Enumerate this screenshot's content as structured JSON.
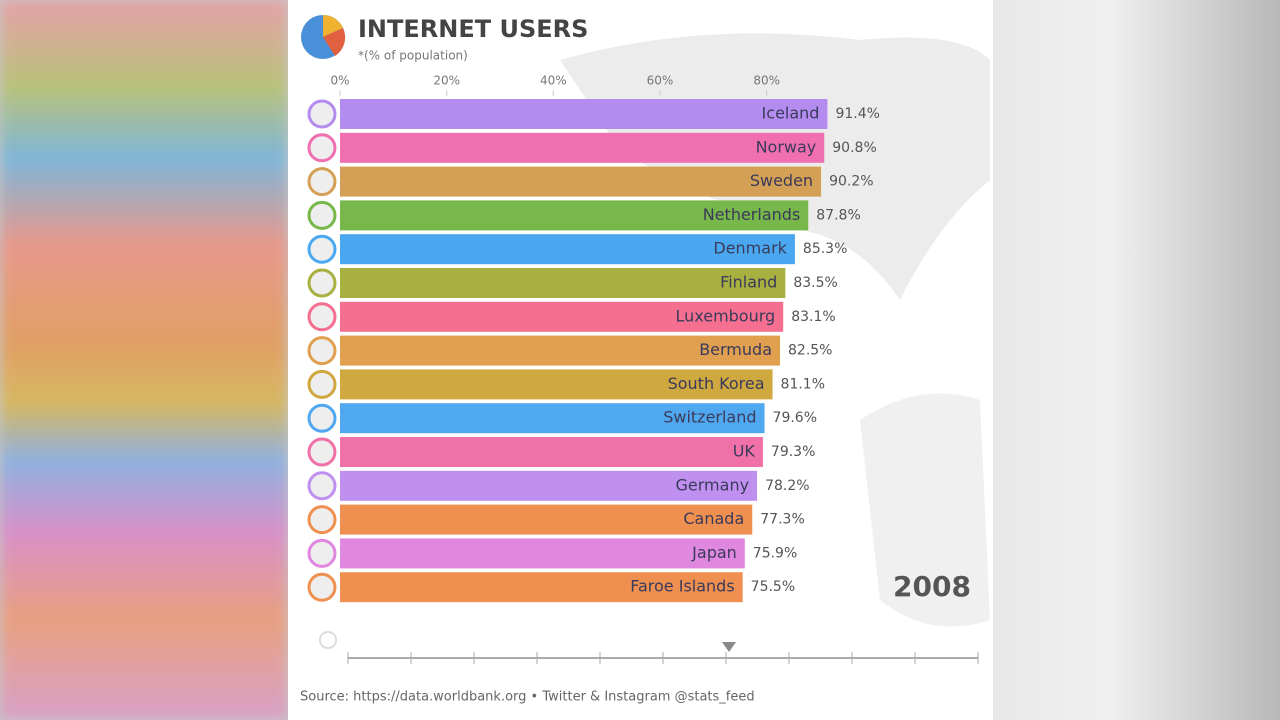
{
  "chart_data": {
    "type": "bar",
    "orientation": "horizontal",
    "title": "INTERNET USERS",
    "subtitle": "*(% of population)",
    "categories": [
      "Iceland",
      "Norway",
      "Sweden",
      "Netherlands",
      "Denmark",
      "Finland",
      "Luxembourg",
      "Bermuda",
      "South Korea",
      "Switzerland",
      "UK",
      "Germany",
      "Canada",
      "Japan",
      "Faroe Islands"
    ],
    "values": [
      91.4,
      90.8,
      90.2,
      87.8,
      85.3,
      83.5,
      83.1,
      82.5,
      81.1,
      79.6,
      79.3,
      78.2,
      77.3,
      75.9,
      75.5
    ],
    "value_labels": [
      "91.4%",
      "90.8%",
      "90.2%",
      "87.8%",
      "85.3%",
      "83.5%",
      "83.1%",
      "82.5%",
      "81.1%",
      "79.6%",
      "79.3%",
      "78.2%",
      "77.3%",
      "75.9%",
      "75.5%"
    ],
    "colors": [
      "#b48cf0",
      "#ef6fb0",
      "#d4a055",
      "#78b84a",
      "#4aa8f0",
      "#a8b040",
      "#f57090",
      "#e0a050",
      "#d0a840",
      "#50a8f0",
      "#f070a8",
      "#c090f0",
      "#f09050",
      "#e088e0",
      "#f09050"
    ],
    "xlim": [
      0,
      120
    ],
    "xticks": [
      {
        "value": 0,
        "label": "0%"
      },
      {
        "value": 20,
        "label": "20%"
      },
      {
        "value": 40,
        "label": "40%"
      },
      {
        "value": 60,
        "label": "60%"
      },
      {
        "value": 80,
        "label": "80%"
      }
    ],
    "annotation": "2008",
    "source": "Source: https://data.worldbank.org • Twitter & Instagram @stats_feed"
  }
}
